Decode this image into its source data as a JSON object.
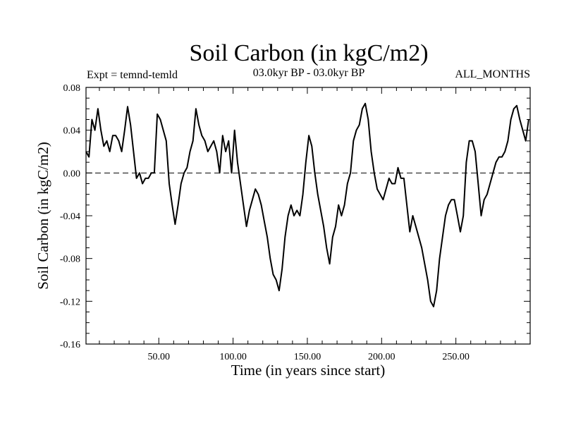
{
  "chart_data": {
    "type": "line",
    "title": "Soil Carbon (in kgC/m2)",
    "expt_label": "Expt = temnd-temld",
    "period_label": "03.0kyr BP - 03.0kyr BP",
    "months_label": "ALL_MONTHS",
    "xlabel": "Time (in years since start)",
    "ylabel": "Soil Carbon (in kgC/m2)",
    "xlim": [
      1,
      300
    ],
    "ylim": [
      -0.16,
      0.08
    ],
    "xticks": [
      50,
      100,
      150,
      200,
      250
    ],
    "xtick_labels": [
      "50.00",
      "100.00",
      "150.00",
      "200.00",
      "250.00"
    ],
    "yticks": [
      0.08,
      0.04,
      0.0,
      -0.04,
      -0.08,
      -0.12,
      -0.16
    ],
    "ytick_labels": [
      "0.08",
      "0.04",
      "0.00",
      "-0.04",
      "-0.08",
      "-0.12",
      "-0.16"
    ],
    "reference_line": 0.0,
    "series": [
      {
        "name": "Soil Carbon",
        "x": [
          1,
          3,
          5,
          7,
          9,
          11,
          13,
          15,
          17,
          19,
          21,
          23,
          25,
          27,
          29,
          31,
          33,
          35,
          37,
          39,
          41,
          43,
          45,
          47,
          49,
          51,
          53,
          55,
          57,
          59,
          61,
          63,
          65,
          67,
          69,
          71,
          73,
          75,
          77,
          79,
          81,
          83,
          85,
          87,
          89,
          91,
          93,
          95,
          97,
          99,
          101,
          103,
          105,
          107,
          109,
          111,
          113,
          115,
          117,
          119,
          121,
          123,
          125,
          127,
          129,
          131,
          133,
          135,
          137,
          139,
          141,
          143,
          145,
          147,
          149,
          151,
          153,
          155,
          157,
          159,
          161,
          163,
          165,
          167,
          169,
          171,
          173,
          175,
          177,
          179,
          181,
          183,
          185,
          187,
          189,
          191,
          193,
          195,
          197,
          199,
          201,
          203,
          205,
          207,
          209,
          211,
          213,
          215,
          217,
          219,
          221,
          223,
          225,
          227,
          229,
          231,
          233,
          235,
          237,
          239,
          241,
          243,
          245,
          247,
          249,
          251,
          253,
          255,
          257,
          259,
          261,
          263,
          265,
          267,
          269,
          271,
          273,
          275,
          277,
          279,
          281,
          283,
          285,
          287,
          289,
          291,
          293,
          295,
          297,
          299
        ],
        "values": [
          0.02,
          0.015,
          0.05,
          0.04,
          0.06,
          0.04,
          0.025,
          0.03,
          0.02,
          0.035,
          0.035,
          0.03,
          0.02,
          0.04,
          0.062,
          0.045,
          0.02,
          -0.005,
          0.0,
          -0.01,
          -0.005,
          -0.005,
          0.0,
          0.0,
          0.055,
          0.05,
          0.04,
          0.03,
          -0.01,
          -0.03,
          -0.048,
          -0.03,
          -0.01,
          0.0,
          0.005,
          0.02,
          0.03,
          0.06,
          0.045,
          0.035,
          0.03,
          0.02,
          0.025,
          0.03,
          0.02,
          0.0,
          0.035,
          0.02,
          0.03,
          0.0,
          0.04,
          0.01,
          -0.01,
          -0.03,
          -0.05,
          -0.035,
          -0.025,
          -0.015,
          -0.02,
          -0.03,
          -0.045,
          -0.06,
          -0.08,
          -0.095,
          -0.1,
          -0.11,
          -0.09,
          -0.06,
          -0.04,
          -0.03,
          -0.04,
          -0.035,
          -0.04,
          -0.02,
          0.01,
          0.035,
          0.025,
          0.0,
          -0.02,
          -0.035,
          -0.05,
          -0.07,
          -0.085,
          -0.06,
          -0.05,
          -0.03,
          -0.04,
          -0.03,
          -0.01,
          0.0,
          0.03,
          0.04,
          0.045,
          0.06,
          0.065,
          0.05,
          0.02,
          0.0,
          -0.015,
          -0.02,
          -0.025,
          -0.015,
          -0.005,
          -0.01,
          -0.01,
          0.005,
          -0.005,
          -0.005,
          -0.03,
          -0.055,
          -0.04,
          -0.05,
          -0.06,
          -0.07,
          -0.085,
          -0.1,
          -0.12,
          -0.125,
          -0.11,
          -0.08,
          -0.06,
          -0.04,
          -0.03,
          -0.025,
          -0.025,
          -0.04,
          -0.055,
          -0.04,
          0.01,
          0.03,
          0.03,
          0.02,
          -0.01,
          -0.04,
          -0.025,
          -0.02,
          -0.01,
          0.0,
          0.01,
          0.015,
          0.015,
          0.02,
          0.03,
          0.05,
          0.06,
          0.063,
          0.05,
          0.04,
          0.03,
          0.05
        ]
      }
    ]
  }
}
